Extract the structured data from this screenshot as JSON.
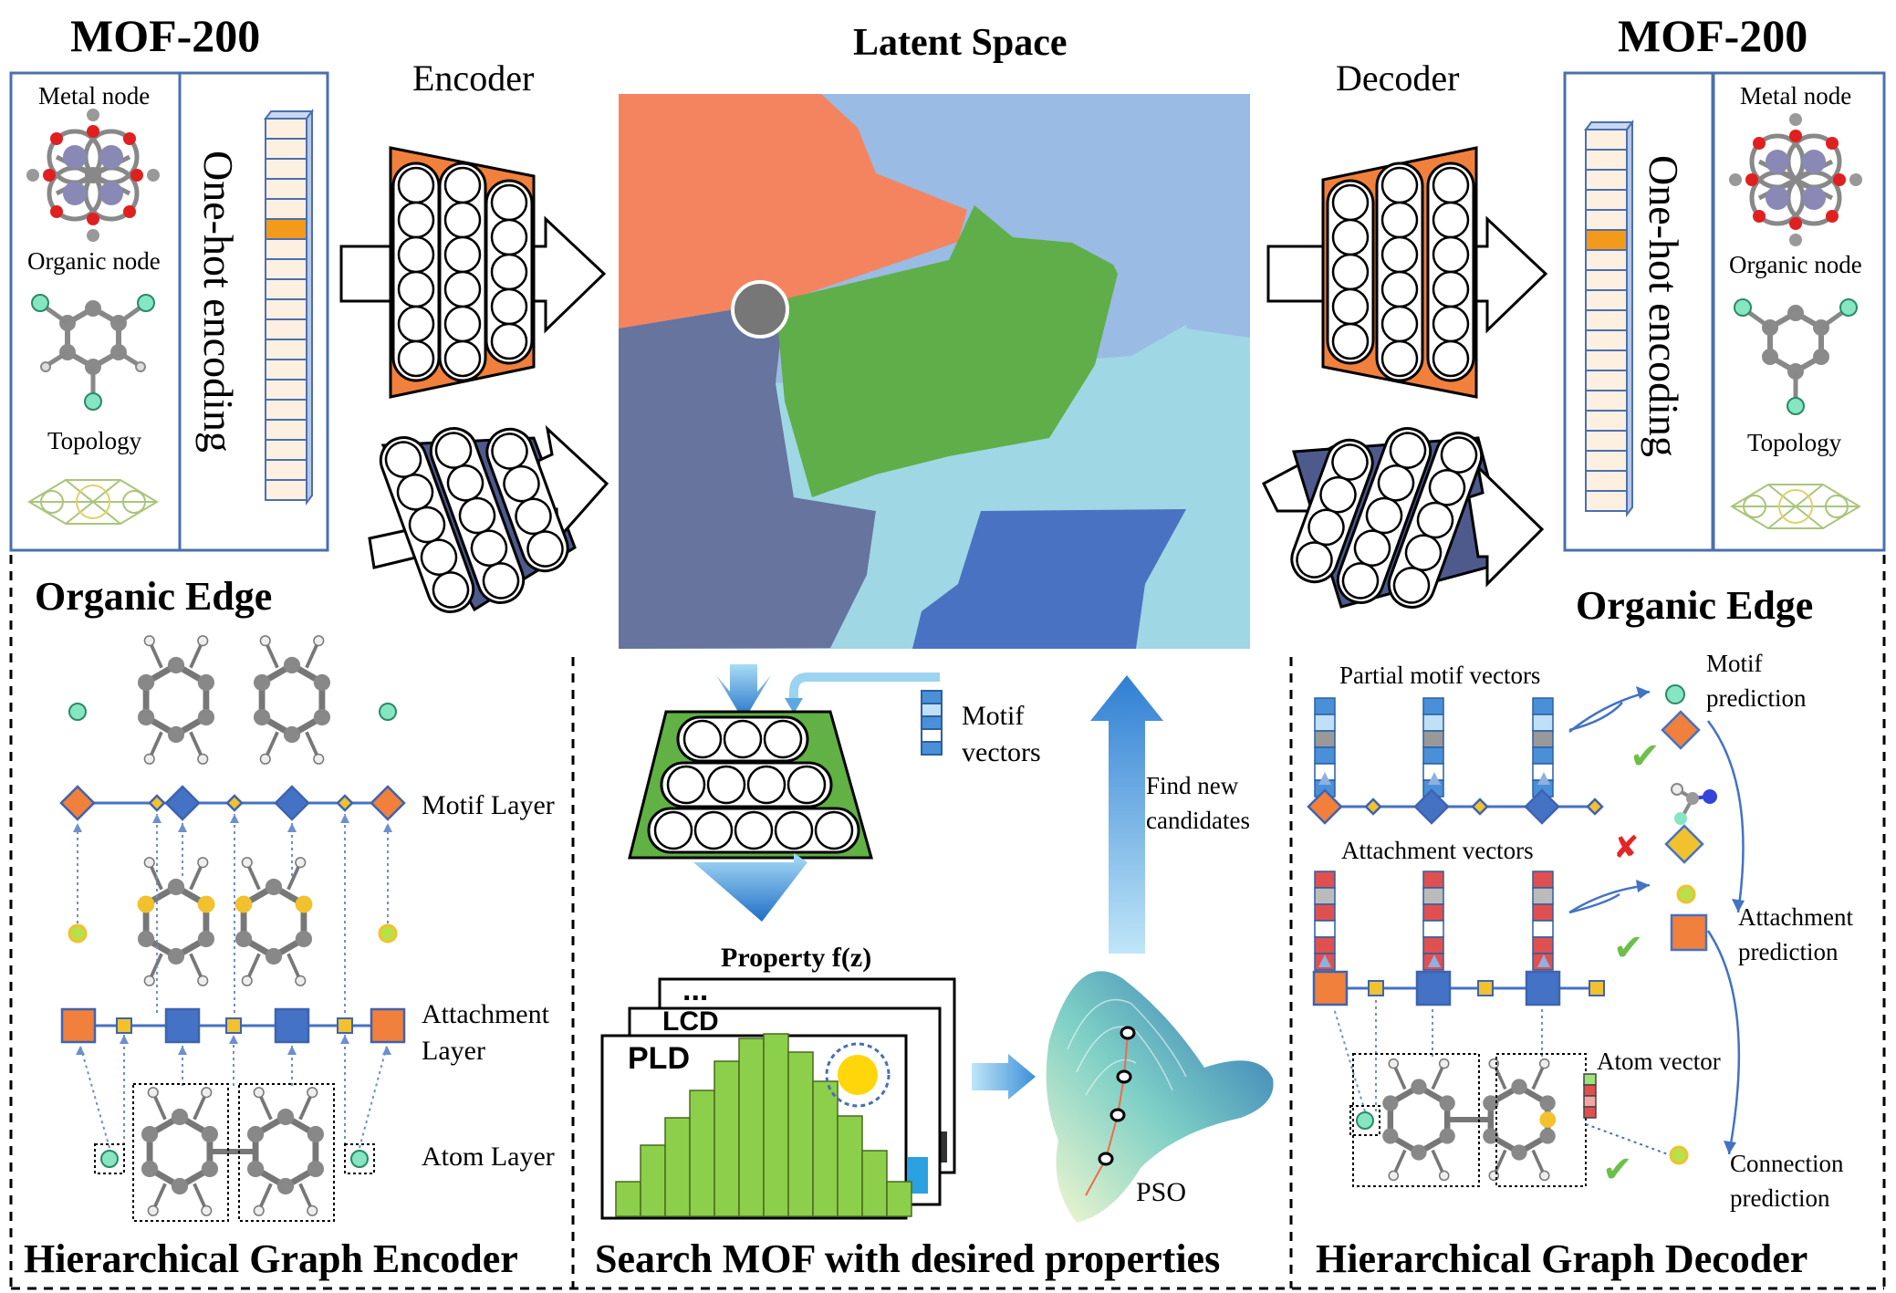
{
  "left_panel": {
    "title": "MOF-200",
    "metal_node": "Metal node",
    "organic_node": "Organic node",
    "topology": "Topology",
    "encoding": "One-hot encoding"
  },
  "right_panel": {
    "title": "MOF-200",
    "metal_node": "Metal node",
    "organic_node": "Organic node",
    "topology": "Topology",
    "encoding": "One-hot encoding"
  },
  "encoder_label": "Encoder",
  "decoder_label": "Decoder",
  "latent_space": {
    "title": "Latent Space",
    "region_colors": [
      "#f4845f",
      "#9abbe3",
      "#5fae49",
      "#66749e",
      "#9fd7e4",
      "#4a72c2"
    ]
  },
  "encoder_section": {
    "organic_edge": "Organic Edge",
    "motif_layer": "Motif Layer",
    "attachment_layer_1": "Attachment",
    "attachment_layer_2": "Layer",
    "atom_layer": "Atom Layer",
    "footer": "Hierarchical Graph Encoder"
  },
  "search_section": {
    "motif_vectors_1": "Motif",
    "motif_vectors_2": "vectors",
    "property": "Property f(z)",
    "card_more": "...",
    "card_lcd": "LCD",
    "card_pld": "PLD",
    "find_new_1": "Find new",
    "find_new_2": "candidates",
    "pso": "PSO",
    "footer": "Search MOF with desired properties"
  },
  "decoder_section": {
    "organic_edge": "Organic Edge",
    "partial_motif": "Partial motif vectors",
    "attachment_vectors": "Attachment vectors",
    "motif_pred_1": "Motif",
    "motif_pred_2": "prediction",
    "attach_pred_1": "Attachment",
    "attach_pred_2": "prediction",
    "atom_vector": "Atom vector",
    "conn_pred_1": "Connection",
    "conn_pred_2": "prediction",
    "footer": "Hierarchical Graph Decoder"
  },
  "colors": {
    "orange": "#f0803c",
    "blue": "#4472c4",
    "navy": "#4e5a8c",
    "green_net": "#61b144",
    "gold": "#f2c12e",
    "mint": "#86e5c2",
    "arrow_blue": "#2e7fd0",
    "bar_green": "#8ccf4a"
  }
}
